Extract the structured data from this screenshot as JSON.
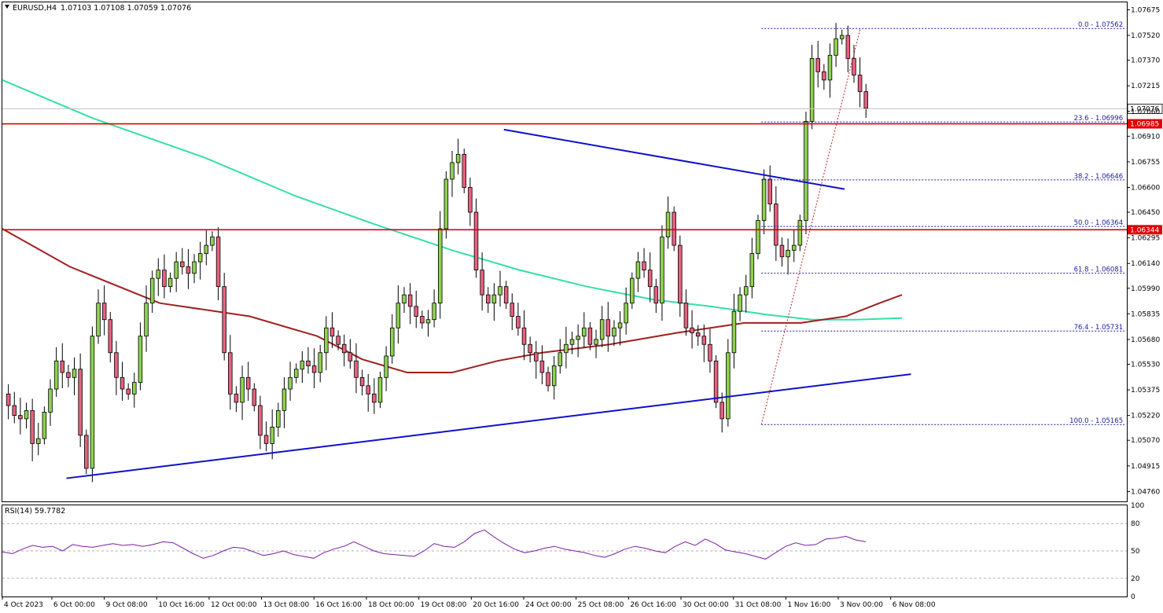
{
  "header": {
    "symbol": "EURUSD,H4",
    "ohlc": "1.07103 1.07108 1.07059 1.07076"
  },
  "rsi_panel": {
    "label": "RSI(14) 59.7782",
    "levels": [
      "100",
      "80",
      "50",
      "20",
      "0"
    ]
  },
  "chart_data": {
    "type": "candlestick",
    "symbol": "EURUSD",
    "timeframe": "H4",
    "ylim": [
      1.047,
      1.0772
    ],
    "y_ticks": [
      "1.07675",
      "1.07520",
      "1.07370",
      "1.07215",
      "1.07060",
      "1.06910",
      "1.06755",
      "1.06600",
      "1.06450",
      "1.06295",
      "1.06140",
      "1.05990",
      "1.05835",
      "1.05680",
      "1.05530",
      "1.05375",
      "1.05220",
      "1.05070",
      "1.04915",
      "1.04760"
    ],
    "x_ticks": [
      "4 Oct 2023",
      "6 Oct 00:00",
      "9 Oct 08:00",
      "10 Oct 16:00",
      "12 Oct 00:00",
      "13 Oct 08:00",
      "16 Oct 16:00",
      "18 Oct 00:00",
      "19 Oct 08:00",
      "20 Oct 16:00",
      "24 Oct 00:00",
      "25 Oct 08:00",
      "26 Oct 16:00",
      "30 Oct 00:00",
      "31 Oct 08:00",
      "1 Nov 16:00",
      "3 Nov 00:00",
      "6 Nov 08:00"
    ],
    "current_price": "1.07076",
    "horizontal_levels": [
      {
        "label": "1.06985",
        "value": 1.06985
      },
      {
        "label": "1.06344",
        "value": 1.06344
      }
    ],
    "fibonacci": [
      {
        "label": "0.0 - 1.07562",
        "value": 1.07562
      },
      {
        "label": "23.6 - 1.06996",
        "value": 1.06996
      },
      {
        "label": "38.2 - 1.06646",
        "value": 1.06646
      },
      {
        "label": "50.0 - 1.06364",
        "value": 1.06364
      },
      {
        "label": "61.8 - 1.06081",
        "value": 1.06081
      },
      {
        "label": "76.4 - 1.05731",
        "value": 1.05731
      },
      {
        "label": "100.0 - 1.05165",
        "value": 1.05165
      }
    ],
    "close_path": [
      1.0535,
      1.0528,
      1.0522,
      1.052,
      1.0525,
      1.0505,
      1.0508,
      1.0524,
      1.0538,
      1.0555,
      1.0548,
      1.0545,
      1.055,
      1.051,
      1.049,
      1.057,
      1.059,
      1.058,
      1.056,
      1.0545,
      1.0538,
      1.0535,
      1.0542,
      1.057,
      1.059,
      1.0605,
      1.061,
      1.06,
      1.0605,
      1.0615,
      1.0612,
      1.0608,
      1.0615,
      1.062,
      1.0625,
      1.063,
      1.06,
      1.056,
      1.0535,
      1.053,
      1.0545,
      1.0538,
      1.0528,
      1.051,
      1.0505,
      1.0515,
      1.0525,
      1.0538,
      1.0545,
      1.055,
      1.0555,
      1.0552,
      1.0548,
      1.056,
      1.0575,
      1.057,
      1.0565,
      1.056,
      1.0555,
      1.0545,
      1.054,
      1.0535,
      1.053,
      1.0545,
      1.0558,
      1.0575,
      1.059,
      1.0595,
      1.0588,
      1.0582,
      1.0578,
      1.058,
      1.059,
      1.0635,
      1.0665,
      1.0675,
      1.068,
      1.066,
      1.0645,
      1.061,
      1.0595,
      1.059,
      1.0595,
      1.06,
      1.059,
      1.0582,
      1.0575,
      1.0565,
      1.056,
      1.0555,
      1.0548,
      1.054,
      1.0552,
      1.056,
      1.0565,
      1.0568,
      1.057,
      1.0575,
      1.0565,
      1.0568,
      1.058,
      1.057,
      1.0575,
      1.0578,
      1.059,
      1.0605,
      1.0615,
      1.061,
      1.06,
      1.059,
      1.063,
      1.0645,
      1.0625,
      1.059,
      1.0575,
      1.0572,
      1.057,
      1.0565,
      1.0555,
      1.053,
      1.052,
      1.056,
      1.0585,
      1.0595,
      1.06,
      1.062,
      1.064,
      1.0665,
      1.065,
      1.0625,
      1.0618,
      1.0622,
      1.0625,
      1.064,
      1.07,
      1.0738,
      1.073,
      1.0725,
      1.074,
      1.075,
      1.0752,
      1.0738,
      1.0728,
      1.0718,
      1.0708
    ],
    "trendlines": [
      {
        "name": "support",
        "color": "#1010c8",
        "x1": 0.057,
        "y1": 1.0484,
        "x2": 0.808,
        "y2": 1.0547
      },
      {
        "name": "resistance",
        "color": "#1010c8",
        "x1": 0.446,
        "y1": 1.0695,
        "x2": 0.749,
        "y2": 1.0659
      }
    ],
    "moving_averages": [
      {
        "name": "ma-slow",
        "color": "#33e0a8",
        "points": [
          [
            0.0,
            1.0725
          ],
          [
            0.08,
            1.0702
          ],
          [
            0.18,
            1.0678
          ],
          [
            0.26,
            1.0655
          ],
          [
            0.33,
            1.0638
          ],
          [
            0.4,
            1.0622
          ],
          [
            0.46,
            1.061
          ],
          [
            0.52,
            1.06
          ],
          [
            0.58,
            1.0592
          ],
          [
            0.63,
            1.0588
          ],
          [
            0.68,
            1.0583
          ],
          [
            0.72,
            1.058
          ],
          [
            0.76,
            1.058
          ],
          [
            0.8,
            1.0581
          ]
        ]
      },
      {
        "name": "ma-fast",
        "color": "#a02020",
        "points": [
          [
            0.0,
            1.0635
          ],
          [
            0.06,
            1.0612
          ],
          [
            0.14,
            1.059
          ],
          [
            0.22,
            1.0582
          ],
          [
            0.28,
            1.057
          ],
          [
            0.32,
            1.0556
          ],
          [
            0.36,
            1.0548
          ],
          [
            0.4,
            1.0548
          ],
          [
            0.44,
            1.0555
          ],
          [
            0.48,
            1.056
          ],
          [
            0.54,
            1.0565
          ],
          [
            0.6,
            1.0572
          ],
          [
            0.66,
            1.0578
          ],
          [
            0.71,
            1.0578
          ],
          [
            0.75,
            1.0582
          ],
          [
            0.78,
            1.059
          ],
          [
            0.8,
            1.0595
          ]
        ]
      }
    ],
    "rsi_values": [
      49,
      47,
      52,
      56,
      54,
      55,
      50,
      57,
      55,
      54,
      56,
      58,
      56,
      57,
      55,
      57,
      60,
      59,
      53,
      47,
      42,
      45,
      50,
      54,
      53,
      49,
      45,
      47,
      50,
      46,
      44,
      42,
      48,
      52,
      55,
      60,
      55,
      50,
      47,
      46,
      45,
      44,
      50,
      58,
      55,
      54,
      60,
      69,
      73,
      65,
      58,
      52,
      48,
      50,
      53,
      55,
      52,
      50,
      48,
      45,
      43,
      47,
      52,
      55,
      53,
      50,
      48,
      55,
      60,
      56,
      63,
      58,
      51,
      49,
      47,
      44,
      41,
      48,
      55,
      59,
      56,
      57,
      63,
      64,
      66,
      62,
      60
    ]
  }
}
